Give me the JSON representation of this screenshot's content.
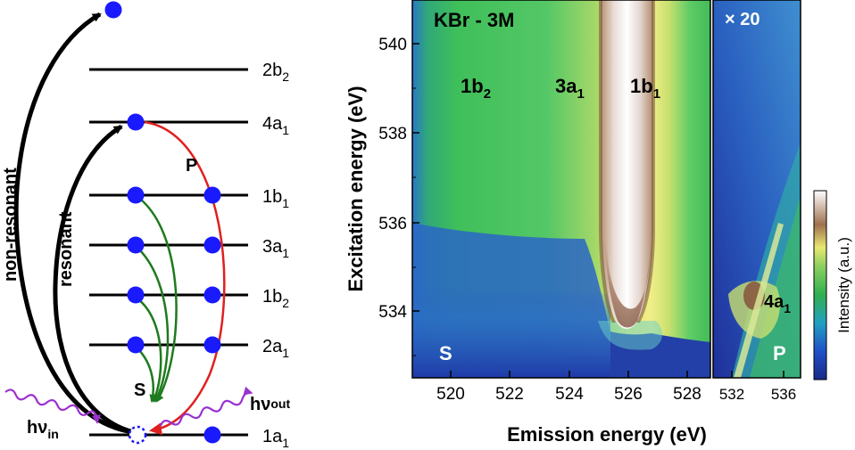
{
  "diagram": {
    "levels": [
      "2b",
      "4a",
      "1b",
      "3a",
      "1b",
      "2a",
      "1a"
    ],
    "level_subs": [
      "2",
      "1",
      "1",
      "1",
      "2",
      "1",
      "1"
    ],
    "arrow_labels": {
      "non_resonant": "non-resonant",
      "resonant": "resonant",
      "P": "P",
      "S": "S"
    },
    "photons": {
      "in_base": "hν",
      "in_sub": "in",
      "out_base": "hν",
      "out_sub": "out"
    },
    "colors": {
      "electron": "#1a1aff",
      "s_arrow": "#1e7a1e",
      "p_arrow": "#e02020",
      "photon": "#9b30d0"
    }
  },
  "map": {
    "title": "KBr - 3M",
    "zoom_label": "× 20",
    "corner_S": "S",
    "corner_P": "P",
    "peak_labels": [
      {
        "base": "1b",
        "sub": "2"
      },
      {
        "base": "3a",
        "sub": "1"
      },
      {
        "base": "1b",
        "sub": "1"
      }
    ],
    "peak_4a1": {
      "base": "4a",
      "sub": "1"
    },
    "xlabel": "Emission energy (eV)",
    "ylabel": "Excitation energy (eV)",
    "x_ticks_left": [
      "520",
      "522",
      "524",
      "526",
      "528"
    ],
    "x_ticks_right": [
      "532",
      "536"
    ],
    "y_ticks": [
      "534",
      "536",
      "538",
      "540"
    ],
    "colorbar_label": "Intensity (a.u.)"
  },
  "chart_data": {
    "type": "heatmap",
    "title": "KBr - 3M",
    "xlabel": "Emission energy (eV)",
    "ylabel": "Excitation energy (eV)",
    "panels": [
      {
        "name": "S",
        "x_range": [
          519,
          529
        ],
        "x_ticks": [
          520,
          522,
          524,
          526,
          528
        ]
      },
      {
        "name": "P",
        "x_range": [
          530,
          538
        ],
        "x_ticks": [
          532,
          536
        ],
        "scale": "× 20"
      }
    ],
    "ylim": [
      532.7,
      541
    ],
    "y_ticks": [
      534,
      536,
      538,
      540
    ],
    "peaks": [
      {
        "label": "1b2",
        "emission": 521.5
      },
      {
        "label": "3a1",
        "emission": 524.8
      },
      {
        "label": "1b1",
        "emission": 526.0,
        "onset_excitation": 533.8
      },
      {
        "label": "4a1",
        "emission": 533.8,
        "excitation": 534.2
      }
    ],
    "colormap": [
      "#1a2a8a",
      "#2050c8",
      "#20a0c0",
      "#30b050",
      "#8cd060",
      "#e8e870",
      "#a07050",
      "#ffffff"
    ],
    "colorbar_label": "Intensity (a.u.)"
  }
}
